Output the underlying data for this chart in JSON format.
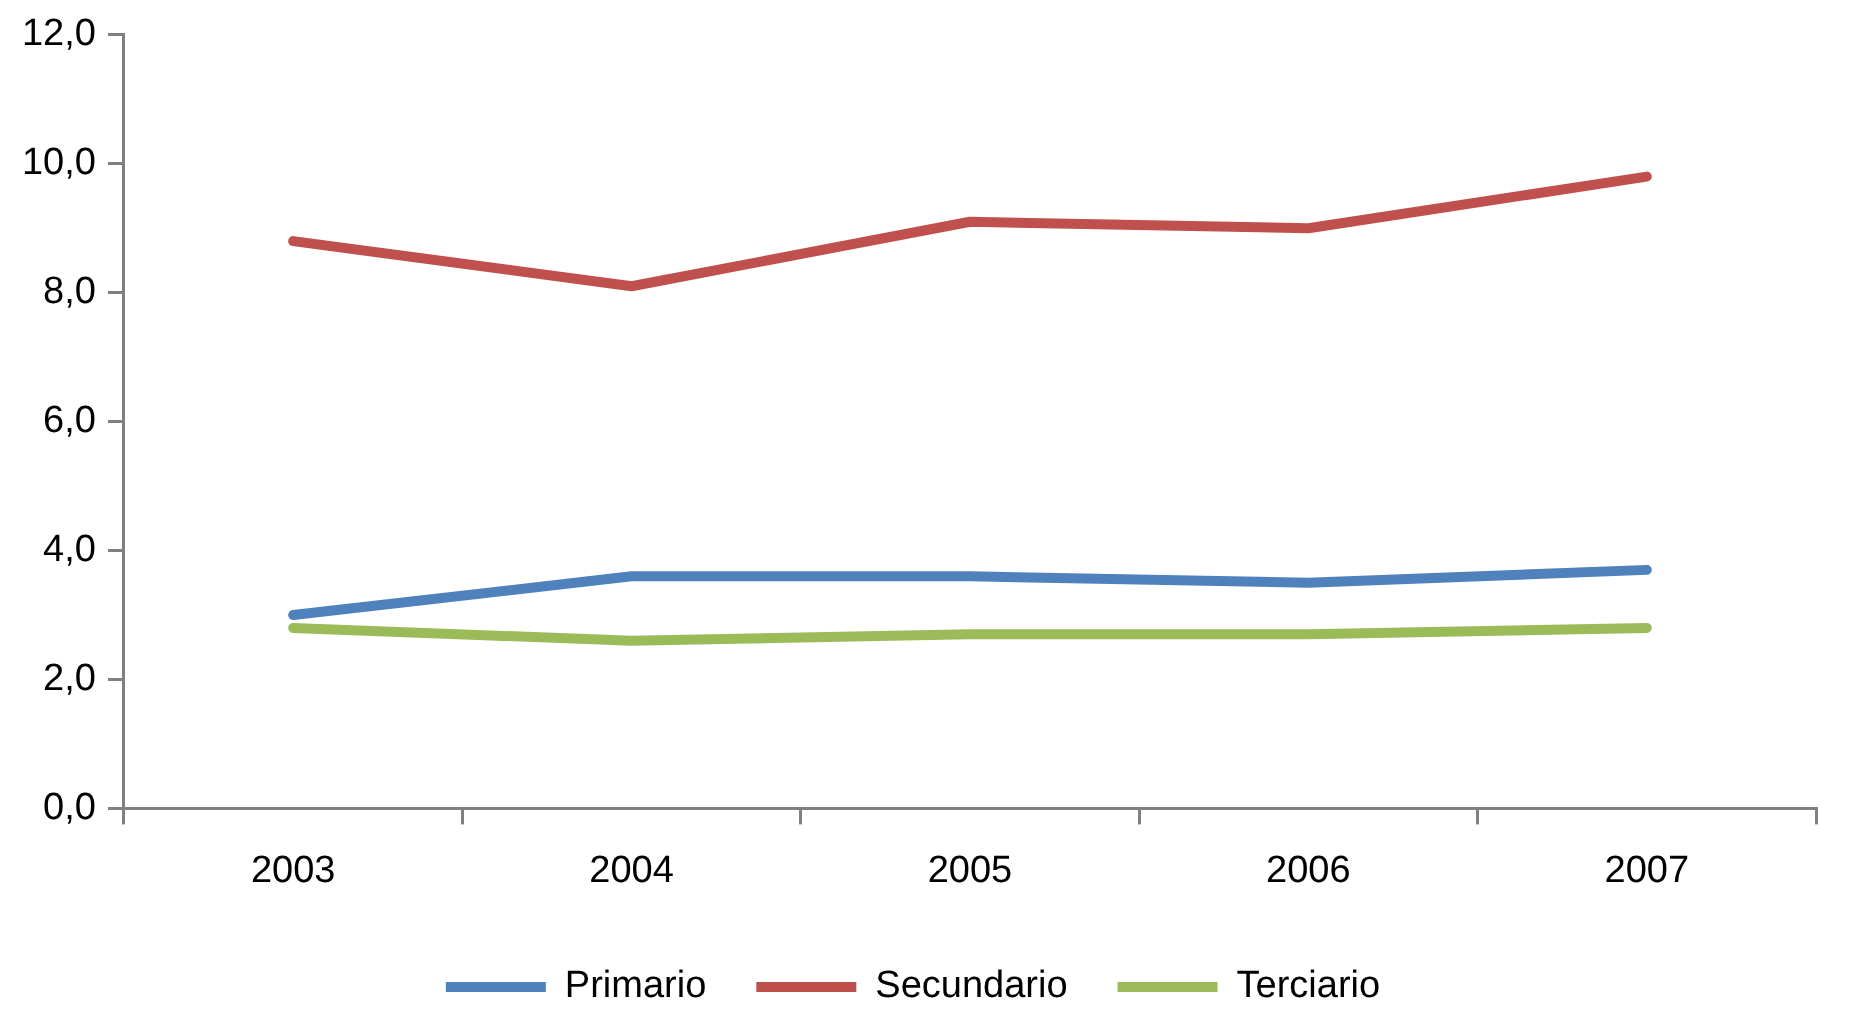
{
  "chart_data": {
    "type": "line",
    "categories": [
      "2003",
      "2004",
      "2005",
      "2006",
      "2007"
    ],
    "series": [
      {
        "name": "Primario",
        "color": "#4f81bd",
        "values": [
          3.0,
          3.6,
          3.6,
          3.5,
          3.7
        ]
      },
      {
        "name": "Secundario",
        "color": "#c0504d",
        "values": [
          8.8,
          8.1,
          9.1,
          9.0,
          9.8
        ]
      },
      {
        "name": "Terciario",
        "color": "#9bbb59",
        "values": [
          2.8,
          2.6,
          2.7,
          2.7,
          2.8
        ]
      }
    ],
    "ylim": [
      0,
      12
    ],
    "yticks": [
      {
        "value": 0,
        "label": "0,0"
      },
      {
        "value": 2,
        "label": "2,0"
      },
      {
        "value": 4,
        "label": "4,0"
      },
      {
        "value": 6,
        "label": "6,0"
      },
      {
        "value": 8,
        "label": "8,0"
      },
      {
        "value": 10,
        "label": "10,0"
      },
      {
        "value": 12,
        "label": "12,0"
      }
    ],
    "grid": false,
    "legend": "bottom",
    "marker": "none",
    "line_style": "solid"
  }
}
